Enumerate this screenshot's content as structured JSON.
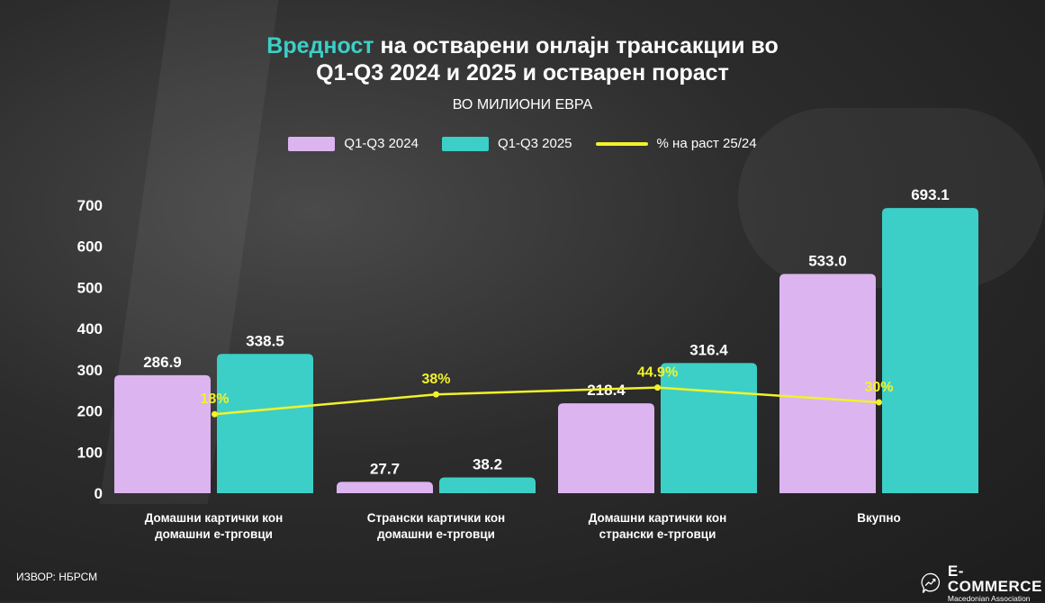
{
  "title": {
    "accent": "Вредност",
    "rest_line1": " на остварени онлајн трансакции во",
    "line2": "Q1-Q3 2024 и 2025 и остварен пораст"
  },
  "subtitle": "ВО МИЛИОНИ ЕВРА",
  "source": "ИЗВОР: НБРСМ",
  "logo": {
    "name": "E-COMMERCE",
    "tagline": "Macedonian Association"
  },
  "colors": {
    "series_2024": "#dcb4f0",
    "series_2025": "#3ccfc7",
    "growth": "#f2f22a",
    "accent": "#3ccfc7"
  },
  "chart_data": {
    "type": "bar",
    "title": "Вредност на остварени онлајн трансакции во Q1-Q3 2024 и 2025 и остварен пораст",
    "ylabel": "ВО МИЛИОНИ ЕВРА",
    "ylim": [
      0,
      700
    ],
    "yticks": [
      0,
      100,
      200,
      300,
      400,
      500,
      600,
      700
    ],
    "grid": false,
    "legend_position": "top-center",
    "categories": [
      [
        "Домашни картички кон",
        "домашни е-трговци"
      ],
      [
        "Странски картички кон",
        "домашни е-трговци"
      ],
      [
        "Домашни картички кон",
        "странски е-трговци"
      ],
      [
        "Вкупно"
      ]
    ],
    "series": [
      {
        "name": "Q1-Q3 2024",
        "type": "bar",
        "values": [
          286.9,
          27.7,
          218.4,
          533.0
        ],
        "labels": [
          "286.9",
          "27.7",
          "218.4",
          "533.0"
        ]
      },
      {
        "name": "Q1-Q3 2025",
        "type": "bar",
        "values": [
          338.5,
          38.2,
          316.4,
          693.1
        ],
        "labels": [
          "338.5",
          "38.2",
          "316.4",
          "693.1"
        ]
      },
      {
        "name": "% на раст 25/24",
        "type": "line",
        "values": [
          18,
          38,
          44.9,
          30
        ],
        "labels": [
          "18%",
          "38%",
          "44.9%",
          "30%"
        ]
      }
    ]
  }
}
